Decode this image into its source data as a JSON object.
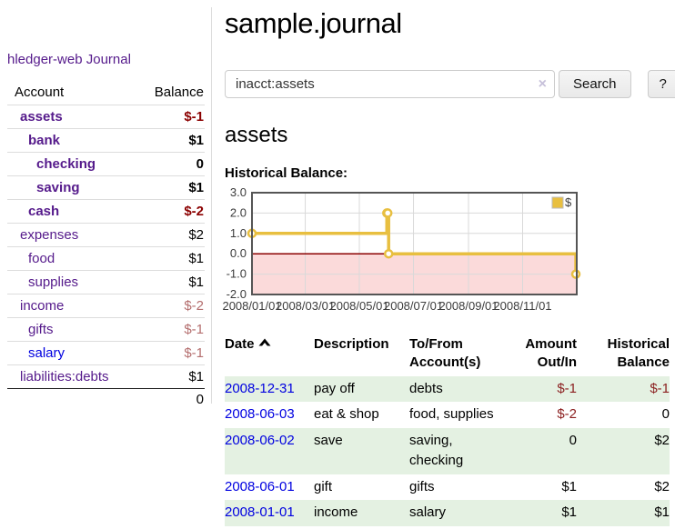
{
  "app_title": "hledger-web",
  "colors": {
    "link_purple": "#551a8b",
    "link_blue": "#0000e0",
    "negative_strong": "#8b0000",
    "negative_muted": "#b46e6e",
    "row_green": "#e4f1e2",
    "chart_line_gold": "#e8bf40"
  },
  "sidebar": {
    "journal_link": "Journal",
    "accounts": {
      "header_account": "Account",
      "header_balance": "Balance",
      "rows": [
        {
          "name": "assets",
          "balance": "$-1"
        },
        {
          "name": "bank",
          "balance": "$1"
        },
        {
          "name": "checking",
          "balance": "0"
        },
        {
          "name": "saving",
          "balance": "$1"
        },
        {
          "name": "cash",
          "balance": "$-2"
        },
        {
          "name": "expenses",
          "balance": "$2"
        },
        {
          "name": "food",
          "balance": "$1"
        },
        {
          "name": "supplies",
          "balance": "$1"
        },
        {
          "name": "income",
          "balance": "$-2"
        },
        {
          "name": "gifts",
          "balance": "$-1"
        },
        {
          "name": "salary",
          "balance": "$-1"
        },
        {
          "name": "liabilities:debts",
          "balance": "$1"
        }
      ],
      "total": "0"
    }
  },
  "main": {
    "title": "sample.journal",
    "search": {
      "value": "inacct:assets",
      "clear_icon": "×",
      "search_button": "Search",
      "help_button": "?"
    },
    "heading": "assets",
    "chart_title": "Historical Balance:"
  },
  "chart_data": {
    "type": "line",
    "step": true,
    "title": "Historical Balance:",
    "series": [
      {
        "name": "$",
        "color": "#e8bf40",
        "points": [
          [
            "2008-01-01",
            1
          ],
          [
            "2008-06-01",
            2
          ],
          [
            "2008-06-02",
            2
          ],
          [
            "2008-06-03",
            0
          ],
          [
            "2008-12-31",
            -1
          ]
        ]
      }
    ],
    "x_start": "2008-01-01",
    "x_end": "2009-01-01",
    "x_ticks": [
      {
        "date": "2008-01-01",
        "label": "2008/01/01"
      },
      {
        "date": "2008-03-01",
        "label": "2008/03/01"
      },
      {
        "date": "2008-05-01",
        "label": "2008/05/01"
      },
      {
        "date": "2008-07-01",
        "label": "2008/07/01"
      },
      {
        "date": "2008-09-01",
        "label": "2008/09/01"
      },
      {
        "date": "2008-11-01",
        "label": "2008/11/01"
      }
    ],
    "y_ticks": [
      {
        "value": 3,
        "label": "3.0"
      },
      {
        "value": 2,
        "label": "2.0"
      },
      {
        "value": 1,
        "label": "1.0"
      },
      {
        "value": 0,
        "label": "0.0"
      },
      {
        "value": -1,
        "label": "-1.0"
      },
      {
        "value": -2,
        "label": "-2.0"
      }
    ],
    "ylim": [
      -2,
      3
    ],
    "grid": true,
    "grid_color": "#d9d9d9",
    "border_color": "#555555",
    "zero_line_color": "#8b0000",
    "negative_region_fill": "#fbdada",
    "legend": {
      "label": "$",
      "position": "top-right"
    }
  },
  "register": {
    "headers": {
      "date": "Date",
      "description": "Description",
      "accounts": "To/From Account(s)",
      "amount": "Amount Out/In",
      "balance": "Historical Balance"
    },
    "sort_column": "Date",
    "sort_direction": "ascending",
    "rows": [
      {
        "date": "2008-12-31",
        "description": "pay off",
        "accounts": "debts",
        "amount": "$-1",
        "balance": "$-1"
      },
      {
        "date": "2008-06-03",
        "description": "eat & shop",
        "accounts": "food, supplies",
        "amount": "$-2",
        "balance": "0"
      },
      {
        "date": "2008-06-02",
        "description": "save",
        "accounts": "saving, checking",
        "amount": "0",
        "balance": "$2"
      },
      {
        "date": "2008-06-01",
        "description": "gift",
        "accounts": "gifts",
        "amount": "$1",
        "balance": "$2"
      },
      {
        "date": "2008-01-01",
        "description": "income",
        "accounts": "salary",
        "amount": "$1",
        "balance": "$1"
      }
    ]
  }
}
